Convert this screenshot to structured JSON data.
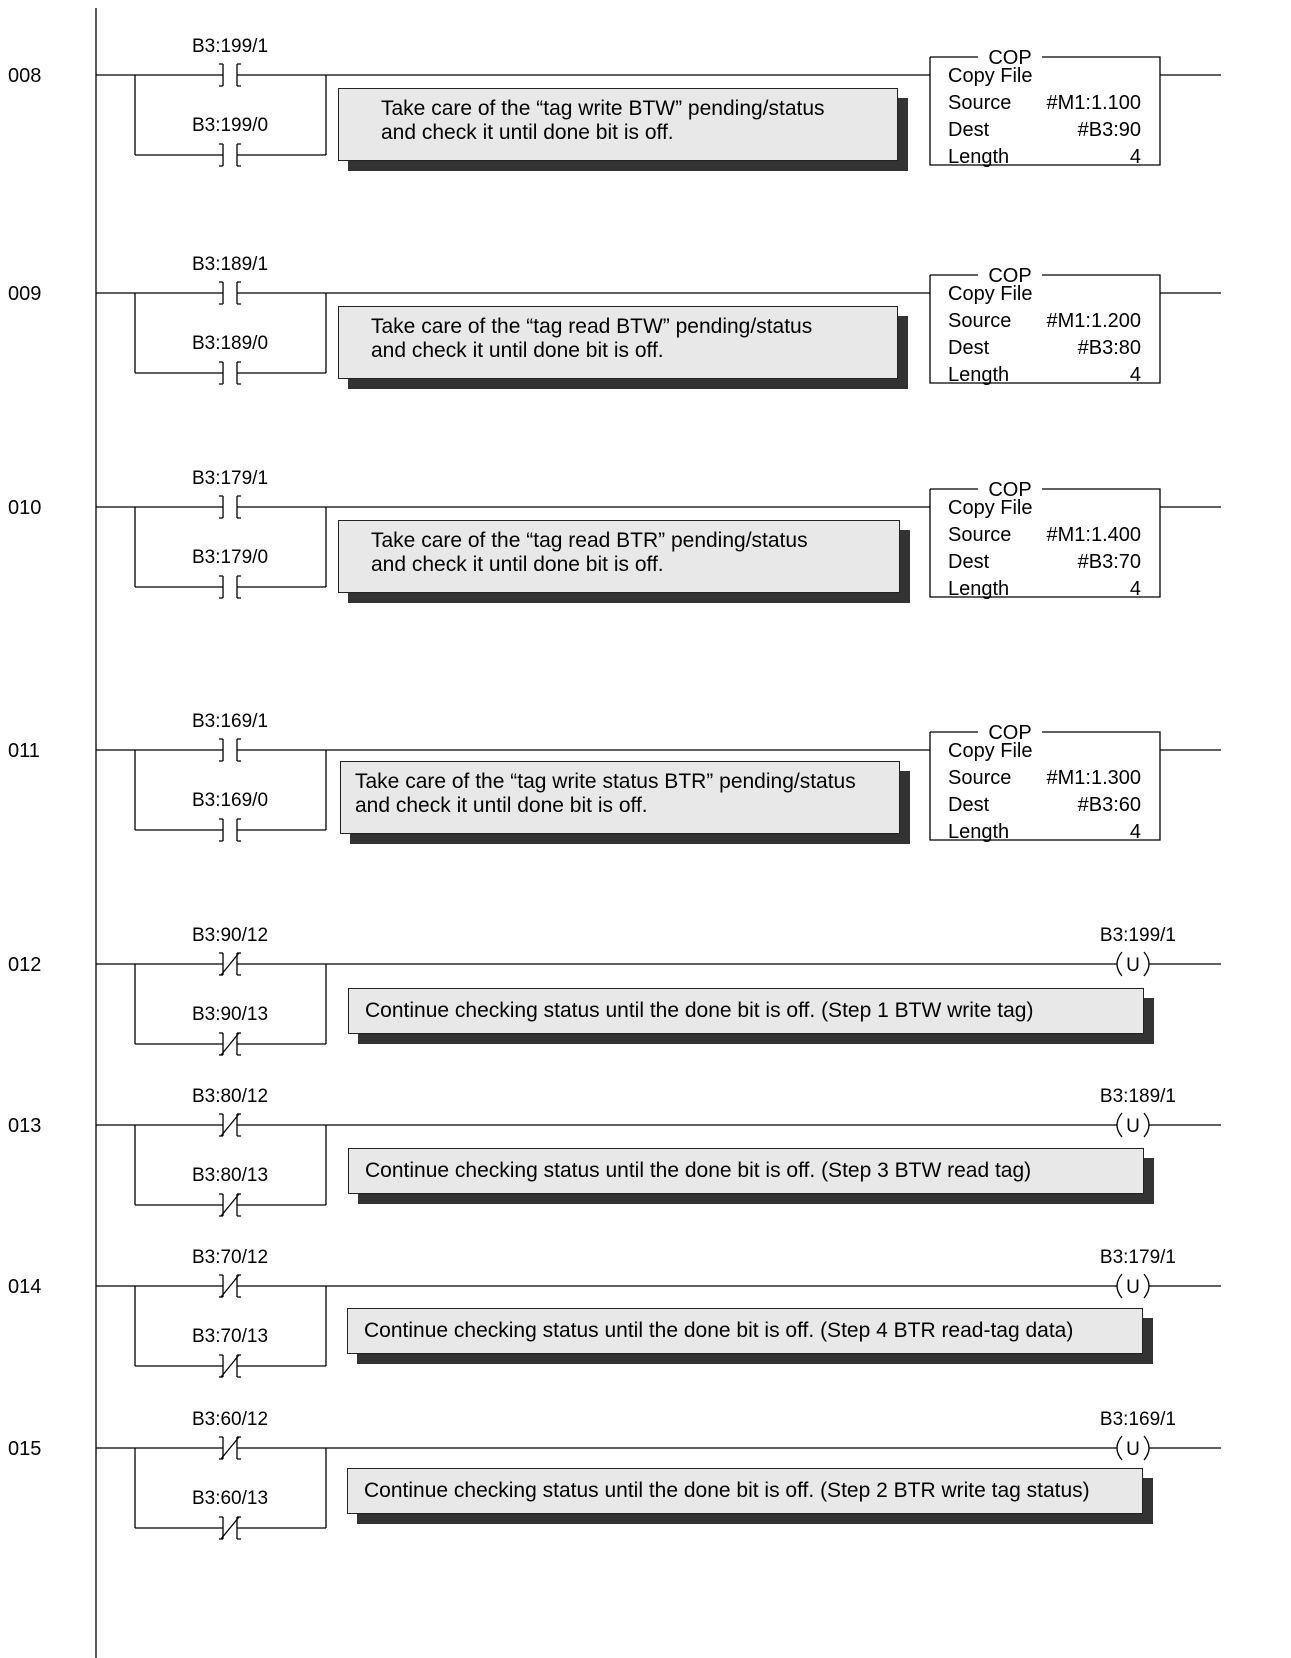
{
  "rungs": [
    {
      "number": "008",
      "contacts": [
        {
          "label": "B3:199/1",
          "type": "NO"
        },
        {
          "label": "B3:199/0",
          "type": "NO"
        }
      ],
      "comment": "Take care of the “tag write BTW” pending/status\nand check it until done bit is off.",
      "output": {
        "type": "COP",
        "title": "COP",
        "name": "Copy File",
        "source_label": "Source",
        "source": "#M1:1.100",
        "dest_label": "Dest",
        "dest": "#B3:90",
        "length_label": "Length",
        "length": "4"
      }
    },
    {
      "number": "009",
      "contacts": [
        {
          "label": "B3:189/1",
          "type": "NO"
        },
        {
          "label": "B3:189/0",
          "type": "NO"
        }
      ],
      "comment": "Take care of the “tag read BTW” pending/status\nand check it until done bit is off.",
      "output": {
        "type": "COP",
        "title": "COP",
        "name": "Copy File",
        "source_label": "Source",
        "source": "#M1:1.200",
        "dest_label": "Dest",
        "dest": "#B3:80",
        "length_label": "Length",
        "length": "4"
      }
    },
    {
      "number": "010",
      "contacts": [
        {
          "label": "B3:179/1",
          "type": "NO"
        },
        {
          "label": "B3:179/0",
          "type": "NO"
        }
      ],
      "comment": "Take care of the “tag read BTR” pending/status\nand check it until done bit is off.",
      "output": {
        "type": "COP",
        "title": "COP",
        "name": "Copy File",
        "source_label": "Source",
        "source": "#M1:1.400",
        "dest_label": "Dest",
        "dest": "#B3:70",
        "length_label": "Length",
        "length": "4"
      }
    },
    {
      "number": "011",
      "contacts": [
        {
          "label": "B3:169/1",
          "type": "NO"
        },
        {
          "label": "B3:169/0",
          "type": "NO"
        }
      ],
      "comment": "Take care of the “tag write status BTR” pending/status\nand check it until done bit is off.",
      "output": {
        "type": "COP",
        "title": "COP",
        "name": "Copy File",
        "source_label": "Source",
        "source": "#M1:1.300",
        "dest_label": "Dest",
        "dest": "#B3:60",
        "length_label": "Length",
        "length": "4"
      }
    },
    {
      "number": "012",
      "contacts": [
        {
          "label": "B3:90/12",
          "type": "NC"
        },
        {
          "label": "B3:90/13",
          "type": "NC"
        }
      ],
      "comment": "Continue checking status until the done bit is off.  (Step 1 BTW write tag)",
      "output": {
        "type": "OTU",
        "label": "B3:199/1",
        "symbol": "U"
      }
    },
    {
      "number": "013",
      "contacts": [
        {
          "label": "B3:80/12",
          "type": "NC"
        },
        {
          "label": "B3:80/13",
          "type": "NC"
        }
      ],
      "comment": "Continue checking status until the done bit is off.  (Step 3 BTW read tag)",
      "output": {
        "type": "OTU",
        "label": "B3:189/1",
        "symbol": "U"
      }
    },
    {
      "number": "014",
      "contacts": [
        {
          "label": "B3:70/12",
          "type": "NC"
        },
        {
          "label": "B3:70/13",
          "type": "NC"
        }
      ],
      "comment": "Continue checking status until the done bit is off.  (Step 4 BTR read-tag data)",
      "output": {
        "type": "OTU",
        "label": "B3:179/1",
        "symbol": "U"
      }
    },
    {
      "number": "015",
      "contacts": [
        {
          "label": "B3:60/12",
          "type": "NC"
        },
        {
          "label": "B3:60/13",
          "type": "NC"
        }
      ],
      "comment": "Continue checking status until the done bit is off.  (Step 2 BTR write tag status)",
      "output": {
        "type": "OTU",
        "label": "B3:169/1",
        "symbol": "U"
      }
    }
  ]
}
